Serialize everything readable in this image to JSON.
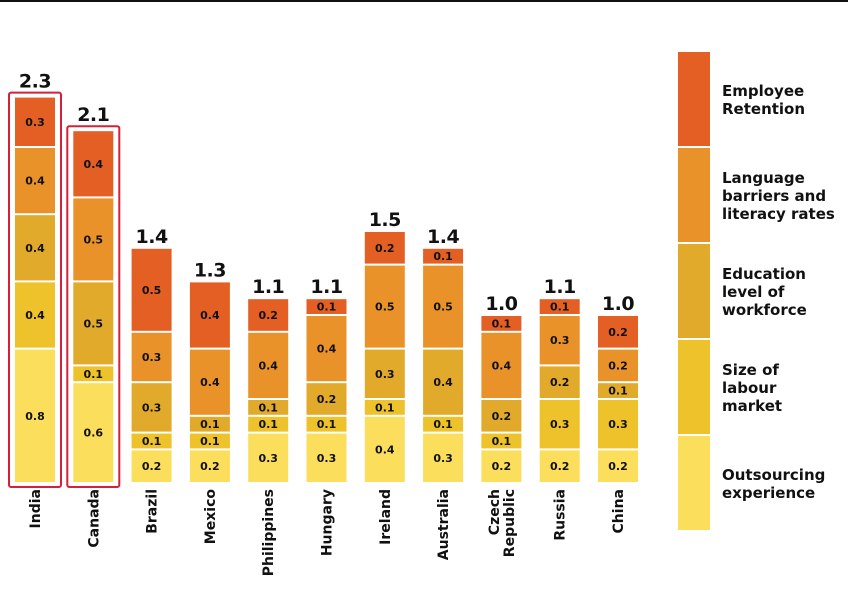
{
  "chart_data": {
    "type": "bar",
    "stacked": true,
    "categories": [
      "India",
      "Canada",
      "Brazil",
      "Mexico",
      "Philippines",
      "Hungary",
      "Ireland",
      "Australia",
      "Czech Republic",
      "Russia",
      "China"
    ],
    "category_label_lines": [
      [
        "India"
      ],
      [
        "Canada"
      ],
      [
        "Brazil"
      ],
      [
        "Mexico"
      ],
      [
        "Philippines"
      ],
      [
        "Hungary"
      ],
      [
        "Ireland"
      ],
      [
        "Australia"
      ],
      [
        "Czech",
        "Republic"
      ],
      [
        "Russia"
      ],
      [
        "China"
      ]
    ],
    "totals": [
      "2.3",
      "2.1",
      "1.4",
      "1.3",
      "1.1",
      "1.1",
      "1.5",
      "1.4",
      "1.0",
      "1.1",
      "1.0"
    ],
    "highlighted": [
      "India",
      "Canada"
    ],
    "highlight_color": "#d6203a",
    "series": [
      {
        "name": "Outsourcing experience",
        "label_lines": [
          "Outsourcing",
          "experience"
        ],
        "color": "#fbde5c",
        "values": [
          0.8,
          0.6,
          0.2,
          0.2,
          0.3,
          0.3,
          0.4,
          0.3,
          0.2,
          0.2,
          0.2
        ]
      },
      {
        "name": "Size of labour market",
        "label_lines": [
          "Size of",
          "labour",
          "market"
        ],
        "color": "#edc22a",
        "values": [
          0.4,
          0.1,
          0.1,
          0.1,
          0.1,
          0.1,
          0.1,
          0.1,
          0.1,
          0.3,
          0.3
        ]
      },
      {
        "name": "Education level of workforce",
        "label_lines": [
          "Education",
          "level of",
          "workforce"
        ],
        "color": "#e2aa2a",
        "values": [
          0.4,
          0.5,
          0.3,
          0.1,
          0.1,
          0.2,
          0.3,
          0.4,
          0.2,
          0.2,
          0.1
        ]
      },
      {
        "name": "Language barriers and literacy rates",
        "label_lines": [
          "Language",
          "barriers and",
          "literacy rates"
        ],
        "color": "#e9922a",
        "values": [
          0.4,
          0.5,
          0.3,
          0.4,
          0.4,
          0.4,
          0.5,
          0.5,
          0.4,
          0.3,
          0.2
        ]
      },
      {
        "name": "Employee Retention",
        "label_lines": [
          "Employee",
          "Retention"
        ],
        "color": "#e35f24",
        "values": [
          0.3,
          0.4,
          0.5,
          0.4,
          0.2,
          0.1,
          0.2,
          0.1,
          0.1,
          0.1,
          0.2
        ]
      }
    ],
    "ylim": [
      0,
      2.3
    ],
    "grid": false,
    "legend_position": "right"
  }
}
